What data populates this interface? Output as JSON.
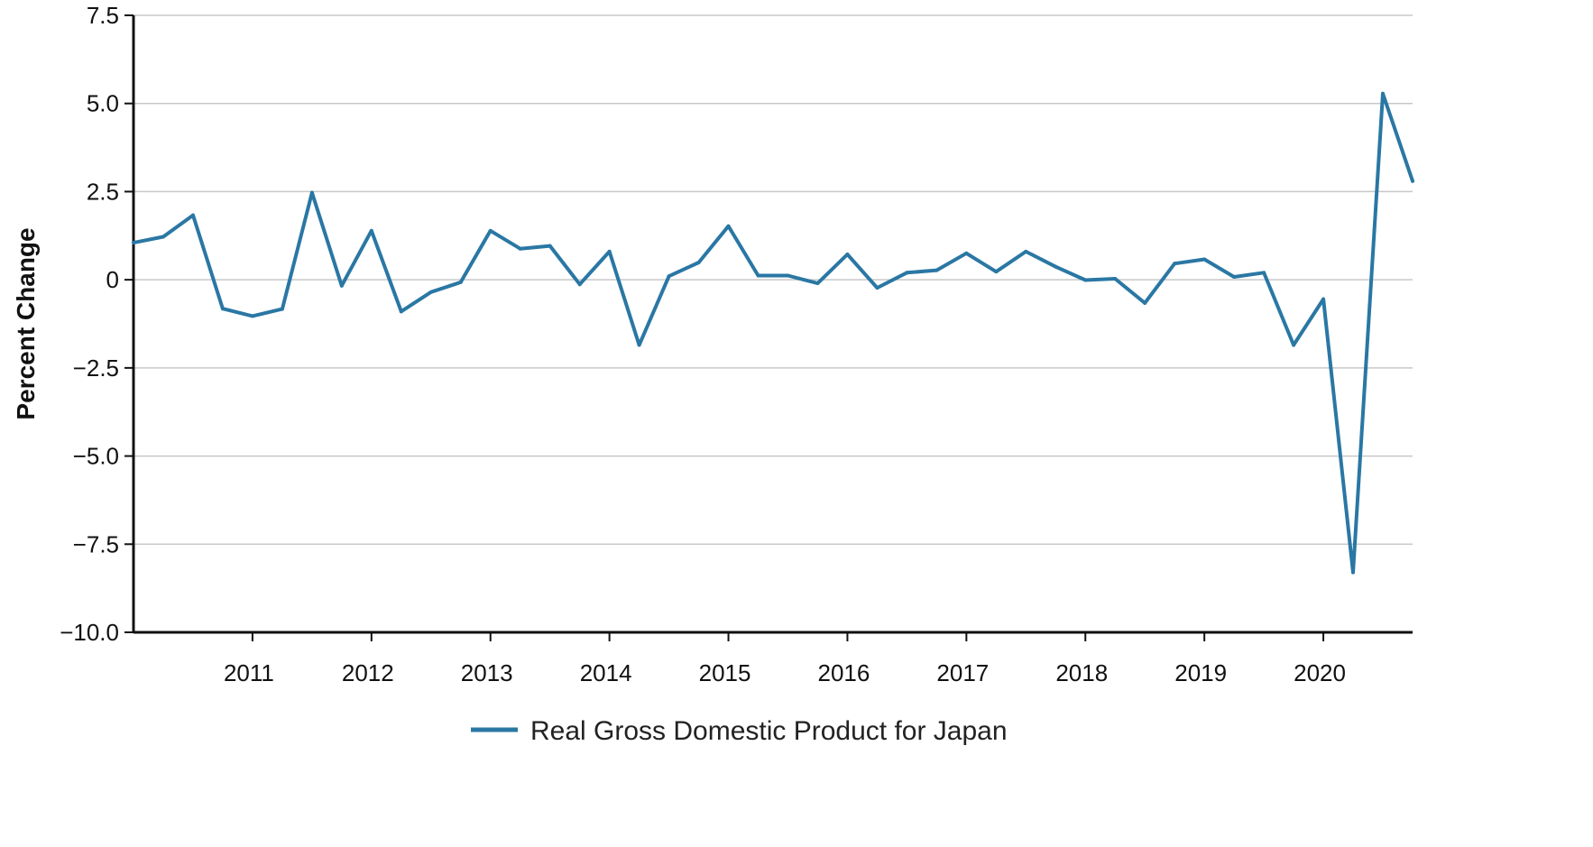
{
  "chart_data": {
    "type": "line",
    "title": "",
    "xlabel": "",
    "ylabel": "Percent Change",
    "ylim": [
      -10.0,
      7.5
    ],
    "xlim": [
      "2010-Q1",
      "2020-Q4"
    ],
    "y_ticks": [
      7.5,
      5.0,
      2.5,
      0.0,
      -2.5,
      -5.0,
      -7.5,
      -10.0
    ],
    "y_tick_labels": [
      "7.5",
      "5.0",
      "2.5",
      "0",
      "−2.5",
      "−5.0",
      "−7.5",
      "−10.0"
    ],
    "x_ticks": [
      "2011",
      "2012",
      "2013",
      "2014",
      "2015",
      "2016",
      "2017",
      "2018",
      "2019",
      "2020"
    ],
    "grid": true,
    "legend_position": "bottom-center",
    "colors": {
      "series": "#2a77a4",
      "grid": "#c8c8c8",
      "axis": "#111111"
    },
    "x": [
      "2010-Q1",
      "2010-Q2",
      "2010-Q3",
      "2010-Q4",
      "2011-Q1",
      "2011-Q2",
      "2011-Q3",
      "2011-Q4",
      "2012-Q1",
      "2012-Q2",
      "2012-Q3",
      "2012-Q4",
      "2013-Q1",
      "2013-Q2",
      "2013-Q3",
      "2013-Q4",
      "2014-Q1",
      "2014-Q2",
      "2014-Q3",
      "2014-Q4",
      "2015-Q1",
      "2015-Q2",
      "2015-Q3",
      "2015-Q4",
      "2016-Q1",
      "2016-Q2",
      "2016-Q3",
      "2016-Q4",
      "2017-Q1",
      "2017-Q2",
      "2017-Q3",
      "2017-Q4",
      "2018-Q1",
      "2018-Q2",
      "2018-Q3",
      "2018-Q4",
      "2019-Q1",
      "2019-Q2",
      "2019-Q3",
      "2019-Q4",
      "2020-Q1",
      "2020-Q2",
      "2020-Q3",
      "2020-Q4"
    ],
    "series": [
      {
        "name": "Real Gross Domestic Product for Japan",
        "values": [
          1.05,
          1.22,
          1.83,
          -0.82,
          -1.03,
          -0.83,
          2.47,
          -0.17,
          1.39,
          -0.9,
          -0.35,
          -0.07,
          1.39,
          0.88,
          0.96,
          -0.13,
          0.8,
          -1.85,
          0.1,
          0.49,
          1.52,
          0.12,
          0.12,
          -0.1,
          0.72,
          -0.23,
          0.2,
          0.27,
          0.75,
          0.23,
          0.8,
          0.37,
          -0.01,
          0.03,
          -0.66,
          0.46,
          0.58,
          0.08,
          0.2,
          -1.85,
          -0.55,
          -8.3,
          5.28,
          2.8
        ]
      }
    ]
  }
}
